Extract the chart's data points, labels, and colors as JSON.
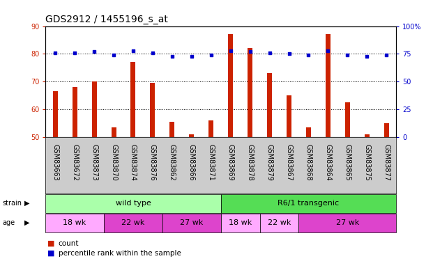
{
  "title": "GDS2912 / 1455196_s_at",
  "samples": [
    "GSM83663",
    "GSM83672",
    "GSM83873",
    "GSM83870",
    "GSM83874",
    "GSM83876",
    "GSM83862",
    "GSM83866",
    "GSM83871",
    "GSM83869",
    "GSM83878",
    "GSM83879",
    "GSM83867",
    "GSM83868",
    "GSM83864",
    "GSM83865",
    "GSM83875",
    "GSM83877"
  ],
  "counts": [
    66.5,
    68.0,
    70.0,
    53.5,
    77.0,
    69.5,
    55.5,
    51.0,
    56.0,
    87.0,
    82.0,
    73.0,
    65.0,
    53.5,
    87.0,
    62.5,
    51.0,
    55.0
  ],
  "percentiles": [
    76,
    76,
    77,
    74,
    78,
    76,
    73,
    73,
    74,
    78,
    77,
    76,
    75,
    74,
    78,
    74,
    73,
    74
  ],
  "ylim_left": [
    50,
    90
  ],
  "ylim_right": [
    0,
    100
  ],
  "left_ticks": [
    50,
    60,
    70,
    80,
    90
  ],
  "right_ticks": [
    0,
    25,
    50,
    75,
    100
  ],
  "right_tick_labels": [
    "0",
    "25",
    "50",
    "75",
    "100%"
  ],
  "bar_color": "#cc2200",
  "square_color": "#0000cc",
  "bg_color": "#ffffff",
  "plot_bg": "#ffffff",
  "strain_labels": [
    "wild type",
    "R6/1 transgenic"
  ],
  "strain_colors": [
    "#aaffaa",
    "#55dd55"
  ],
  "age_groups": [
    {
      "label": "18 wk",
      "start": 0,
      "end": 3
    },
    {
      "label": "22 wk",
      "start": 3,
      "end": 6
    },
    {
      "label": "27 wk",
      "start": 6,
      "end": 9
    },
    {
      "label": "18 wk",
      "start": 9,
      "end": 11
    },
    {
      "label": "22 wk",
      "start": 11,
      "end": 13
    },
    {
      "label": "27 wk",
      "start": 13,
      "end": 18
    }
  ],
  "age_colors": [
    "#ffaaff",
    "#dd44cc",
    "#dd44cc",
    "#ffaaff",
    "#ffaaff",
    "#dd44cc"
  ],
  "legend_count_color": "#cc2200",
  "legend_pct_color": "#0000cc",
  "title_fontsize": 10,
  "tick_label_fontsize": 7,
  "annotation_label_color": "#cc2200",
  "annotation_right_color": "#0000cc",
  "xtick_bg_color": "#cccccc",
  "bar_width": 0.25
}
